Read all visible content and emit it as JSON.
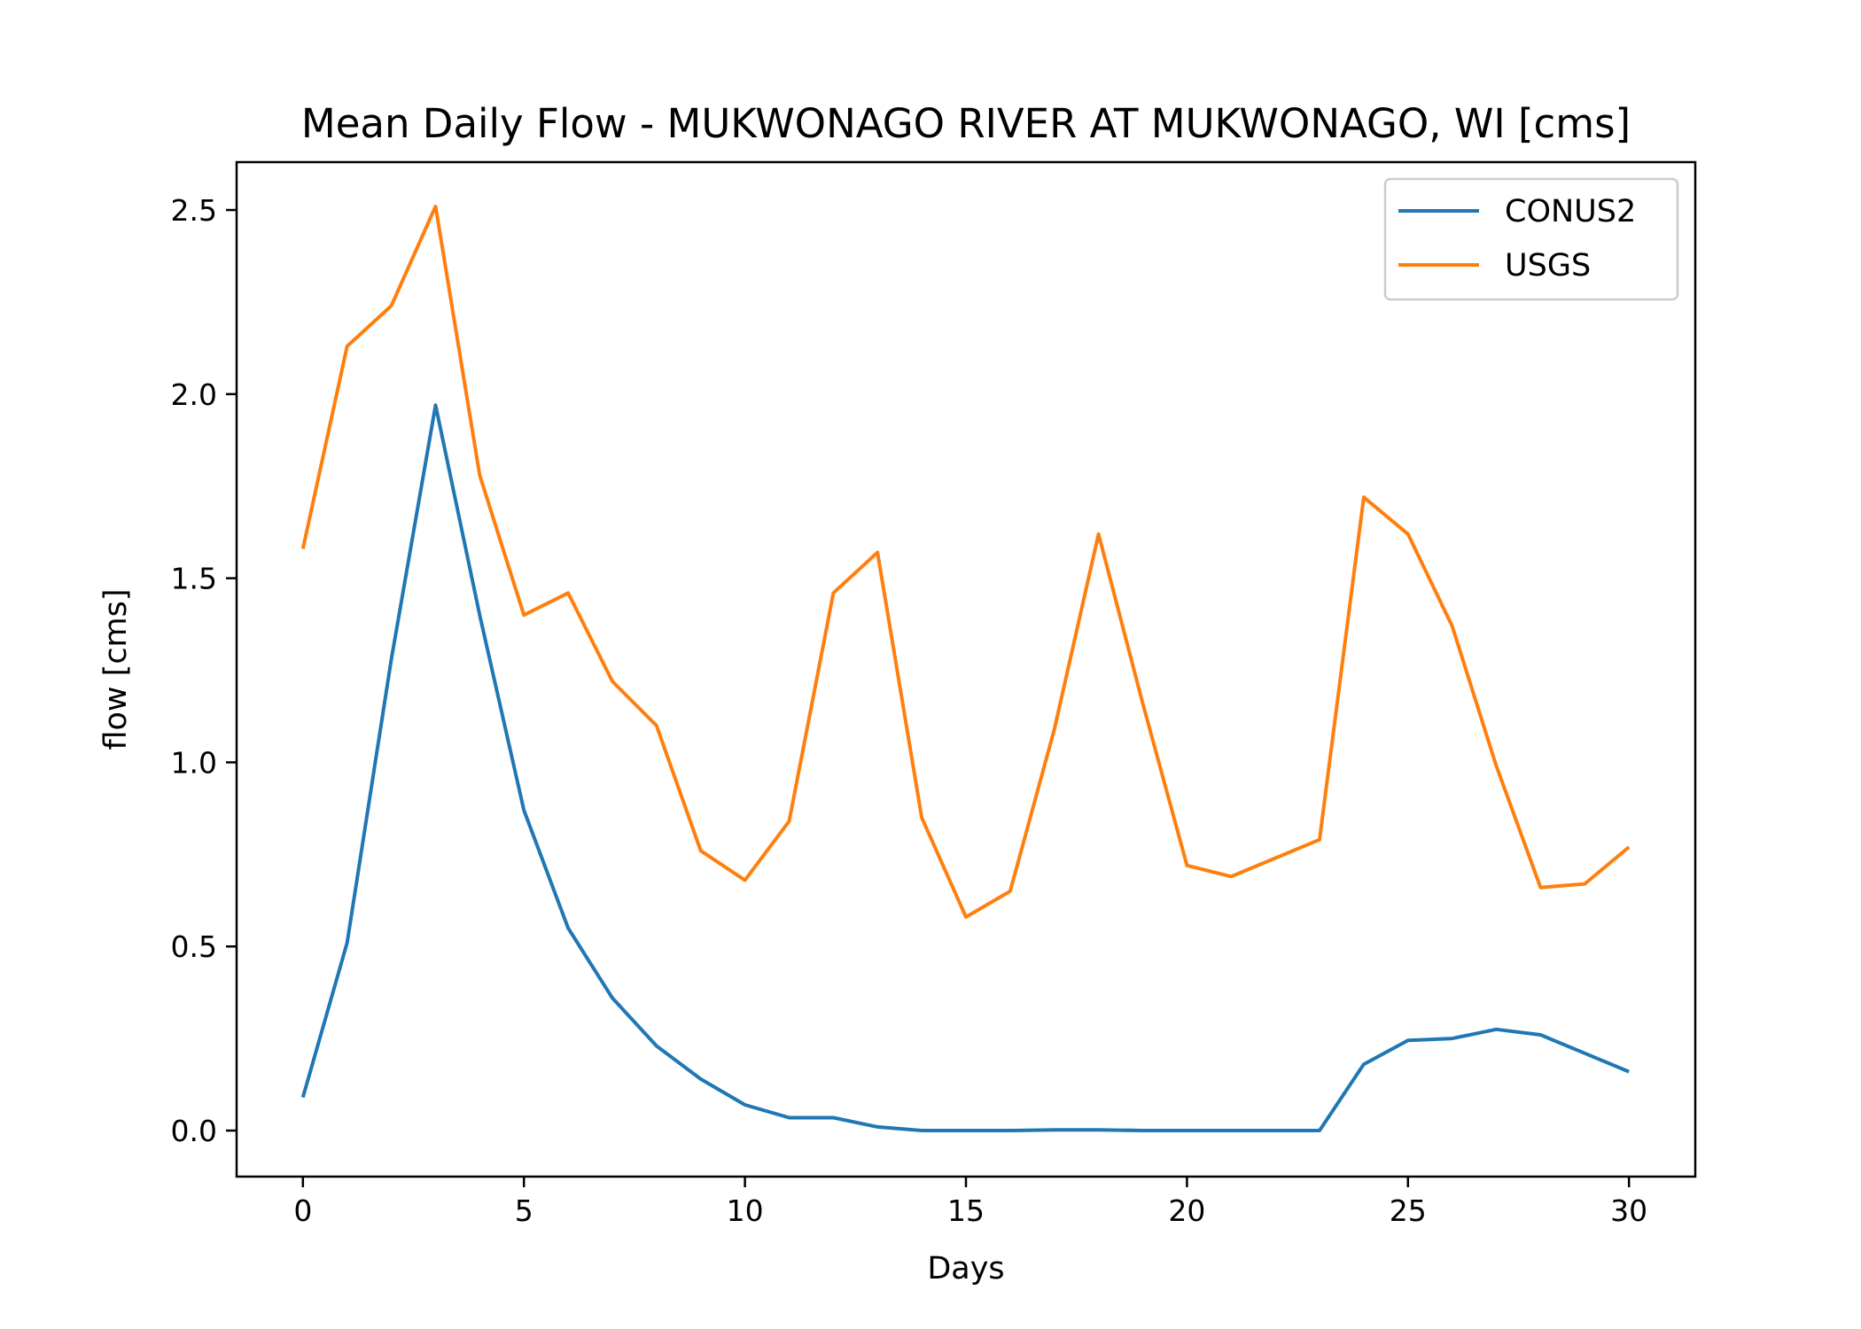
{
  "chart_data": {
    "type": "line",
    "title": "Mean Daily Flow - MUKWONAGO RIVER AT MUKWONAGO, WI [cms]",
    "xlabel": "Days",
    "ylabel": "flow [cms]",
    "xlim": [
      -1.5,
      31.5
    ],
    "ylim": [
      -0.125,
      2.63
    ],
    "xticks": [
      0,
      5,
      10,
      15,
      20,
      25,
      30
    ],
    "xtick_labels": [
      "0",
      "5",
      "10",
      "15",
      "20",
      "25",
      "30"
    ],
    "yticks": [
      0.0,
      0.5,
      1.0,
      1.5,
      2.0,
      2.5
    ],
    "ytick_labels": [
      "0.0",
      "0.5",
      "1.0",
      "1.5",
      "2.0",
      "2.5"
    ],
    "grid": false,
    "legend_position": "top-right",
    "x": [
      0,
      1,
      2,
      3,
      4,
      5,
      6,
      7,
      8,
      9,
      10,
      11,
      12,
      13,
      14,
      15,
      16,
      17,
      18,
      19,
      20,
      21,
      22,
      23,
      24,
      25,
      26,
      27,
      28,
      29,
      30
    ],
    "series": [
      {
        "name": "CONUS2",
        "color": "#1f77b4",
        "values": [
          0.09,
          0.51,
          1.28,
          1.97,
          1.4,
          0.87,
          0.55,
          0.36,
          0.23,
          0.14,
          0.07,
          0.035,
          0.035,
          0.01,
          0.0,
          0.0,
          0.0,
          0.002,
          0.002,
          0.0,
          0.0,
          0.0,
          0.0,
          0.0,
          0.18,
          0.245,
          0.25,
          0.275,
          0.26,
          0.21,
          0.16
        ]
      },
      {
        "name": "USGS",
        "color": "#ff7f0e",
        "values": [
          1.58,
          2.13,
          2.24,
          2.51,
          1.78,
          1.4,
          1.46,
          1.22,
          1.1,
          0.76,
          0.68,
          0.84,
          1.46,
          1.57,
          0.85,
          0.58,
          0.65,
          1.09,
          1.62,
          1.16,
          0.72,
          0.69,
          0.74,
          0.79,
          1.72,
          1.62,
          1.37,
          0.99,
          0.66,
          0.67,
          0.77
        ]
      }
    ]
  }
}
